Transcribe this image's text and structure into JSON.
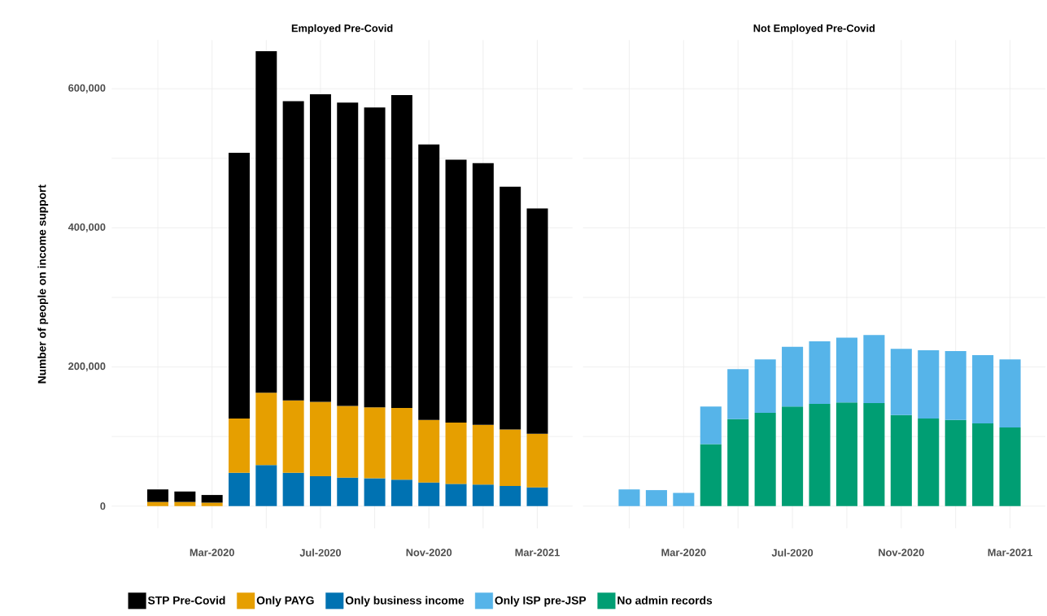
{
  "chart_data": [
    {
      "type": "bar",
      "title": "Employed Pre-Covid",
      "ylabel": "Number of people on income support",
      "stacked": true,
      "grid": true,
      "legend": "bottom",
      "categories": [
        null,
        null,
        "Mar-2020",
        null,
        null,
        null,
        "Jul-2020",
        null,
        null,
        null,
        "Nov-2020",
        null,
        null,
        null,
        "Mar-2021"
      ],
      "ylim": [
        -32000,
        670000
      ],
      "yticks": [
        0,
        {
          "value": 100000,
          "label": null
        },
        {
          "value": 200000,
          "label": "200,000"
        },
        {
          "value": 300000,
          "label": null
        },
        {
          "value": 400000,
          "label": "400,000"
        },
        {
          "value": 500000,
          "label": null
        },
        {
          "value": 600000,
          "label": "600,000"
        }
      ],
      "series": [
        {
          "name": "Only business income",
          "color": "#0072b2",
          "values": [
            null,
            null,
            null,
            48000,
            59000,
            48000,
            43000,
            41000,
            40000,
            38000,
            34000,
            32000,
            31000,
            29000,
            27000
          ]
        },
        {
          "name": "Only PAYG",
          "color": "#e69f00",
          "values": [
            6000,
            6000,
            5000,
            78000,
            104000,
            104000,
            107000,
            103000,
            102000,
            103000,
            90000,
            88000,
            86000,
            81000,
            77000
          ]
        },
        {
          "name": "STP Pre-Covid",
          "color": "#000000",
          "values": [
            18000,
            15000,
            11000,
            382000,
            491000,
            430000,
            442000,
            436000,
            431000,
            450000,
            396000,
            378000,
            376000,
            349000,
            324000
          ]
        }
      ]
    },
    {
      "type": "bar",
      "title": "Not Employed Pre-Covid",
      "stacked": true,
      "grid": true,
      "legend": "bottom",
      "tick_labels": "x",
      "categories": [
        null,
        null,
        "Mar-2020",
        null,
        null,
        null,
        "Jul-2020",
        null,
        null,
        null,
        "Nov-2020",
        null,
        null,
        null,
        "Mar-2021"
      ],
      "ylim": [
        -32000,
        670000
      ],
      "yticks": [
        {
          "value": 0,
          "label": null
        },
        {
          "value": 100000,
          "label": null
        },
        {
          "value": 200000,
          "label": null
        },
        {
          "value": 300000,
          "label": null
        },
        {
          "value": 400000,
          "label": null
        },
        {
          "value": 500000,
          "label": null
        },
        {
          "value": 600000,
          "label": null
        }
      ],
      "series": [
        {
          "name": "No admin records",
          "color": "#009e73",
          "values": [
            null,
            null,
            null,
            89000,
            125000,
            134000,
            143000,
            147000,
            149000,
            148000,
            131000,
            126000,
            124000,
            119000,
            113000
          ]
        },
        {
          "name": "Only ISP pre-JSP",
          "color": "#56b4e9",
          "values": [
            24000,
            23000,
            19000,
            54000,
            72000,
            77000,
            86000,
            90000,
            93000,
            98000,
            95000,
            98000,
            99000,
            98000,
            98000
          ]
        }
      ]
    }
  ]
}
